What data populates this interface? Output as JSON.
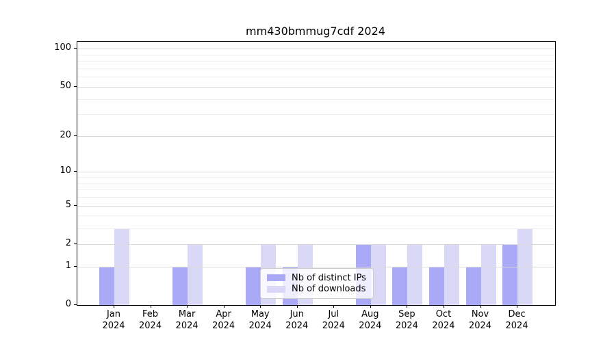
{
  "title": "mm430bmmug7cdf 2024",
  "legend": {
    "items": [
      {
        "label": "Nb of distinct IPs",
        "color": "#a9a9f7"
      },
      {
        "label": "Nb of downloads",
        "color": "#d9d9f7"
      }
    ]
  },
  "axes": {
    "months": [
      "Jan",
      "Feb",
      "Mar",
      "Apr",
      "May",
      "Jun",
      "Jul",
      "Aug",
      "Sep",
      "Oct",
      "Nov",
      "Dec"
    ],
    "year": "2024",
    "y_major_ticks": [
      0,
      1,
      2,
      5,
      10,
      20,
      50,
      100
    ],
    "y_minor_ticks": [
      3,
      4,
      6,
      7,
      8,
      9,
      30,
      40,
      60,
      70,
      80,
      90
    ]
  },
  "chart_data": {
    "type": "bar",
    "title": "mm430bmmug7cdf 2024",
    "categories": [
      "Jan 2024",
      "Feb 2024",
      "Mar 2024",
      "Apr 2024",
      "May 2024",
      "Jun 2024",
      "Jul 2024",
      "Aug 2024",
      "Sep 2024",
      "Oct 2024",
      "Nov 2024",
      "Dec 2024"
    ],
    "series": [
      {
        "name": "Nb of distinct IPs",
        "color": "#a9a9f7",
        "values": [
          1,
          0,
          1,
          0,
          1,
          1,
          0,
          2,
          1,
          1,
          1,
          2
        ]
      },
      {
        "name": "Nb of downloads",
        "color": "#d9d9f7",
        "values": [
          3,
          0,
          2,
          0,
          2,
          2,
          0,
          2,
          2,
          2,
          2,
          3
        ]
      }
    ],
    "xlabel": "",
    "ylabel": "",
    "yscale": "log(1+x)",
    "ylim": [
      0,
      114
    ],
    "y_ticks": [
      0,
      1,
      2,
      5,
      10,
      20,
      50,
      100
    ],
    "grid": true,
    "legend_position": "lower center"
  },
  "colors": {
    "grid_major": "#d9d9d9",
    "grid_minor": "#eeeeee",
    "spine": "#000000",
    "background": "#ffffff"
  }
}
